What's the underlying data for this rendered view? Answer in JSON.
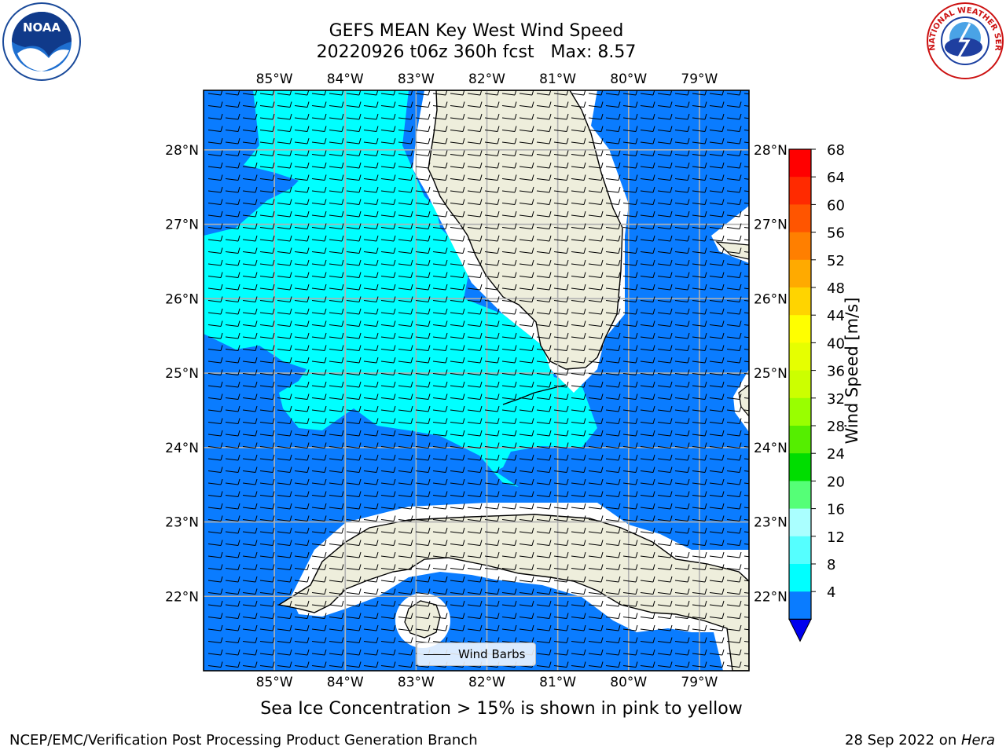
{
  "header": {
    "title_line1": "GEFS MEAN Key West Wind Speed",
    "title_line2": "20220926 t06z 360h fcst   Max: 8.57"
  },
  "logos": {
    "noaa_text": "NOAA",
    "nws_text": "NATIONAL WEATHER SERVICE"
  },
  "map": {
    "lon_labels": [
      "85°W",
      "84°W",
      "83°W",
      "82°W",
      "81°W",
      "80°W",
      "79°W"
    ],
    "lat_labels": [
      "28°N",
      "27°N",
      "26°N",
      "25°N",
      "24°N",
      "23°N",
      "22°N"
    ],
    "legend_label": "Wind Barbs",
    "extent": {
      "lon": [
        -86.0,
        -78.3
      ],
      "lat": [
        21.0,
        28.8
      ]
    },
    "colors": {
      "water_low": "#0a7cff",
      "water_high": "#00ffff",
      "land": "#eeeedc",
      "grid": "#b0b0b0"
    }
  },
  "colorbar": {
    "label": "Wind Speed [m/s]",
    "ticks": [
      "68",
      "64",
      "60",
      "56",
      "52",
      "48",
      "44",
      "40",
      "36",
      "32",
      "28",
      "24",
      "20",
      "16",
      "12",
      "8",
      "4"
    ],
    "colors": [
      "#ff0000",
      "#ff2a00",
      "#ff5500",
      "#ff7f00",
      "#ffaa00",
      "#ffd400",
      "#ffff00",
      "#e6ff00",
      "#ccff00",
      "#99ff00",
      "#55ee00",
      "#00dd00",
      "#55ff77",
      "#aaffff",
      "#55ffff",
      "#00ffff",
      "#0a7cff"
    ],
    "extend_color": "#0000ee"
  },
  "footer": {
    "note": "Sea Ice Concentration > 15% is shown in pink to yellow",
    "left": "NCEP/EMC/Verification Post Processing Product Generation Branch",
    "right_date": "28 Sep 2022 on ",
    "right_host": "Hera"
  }
}
